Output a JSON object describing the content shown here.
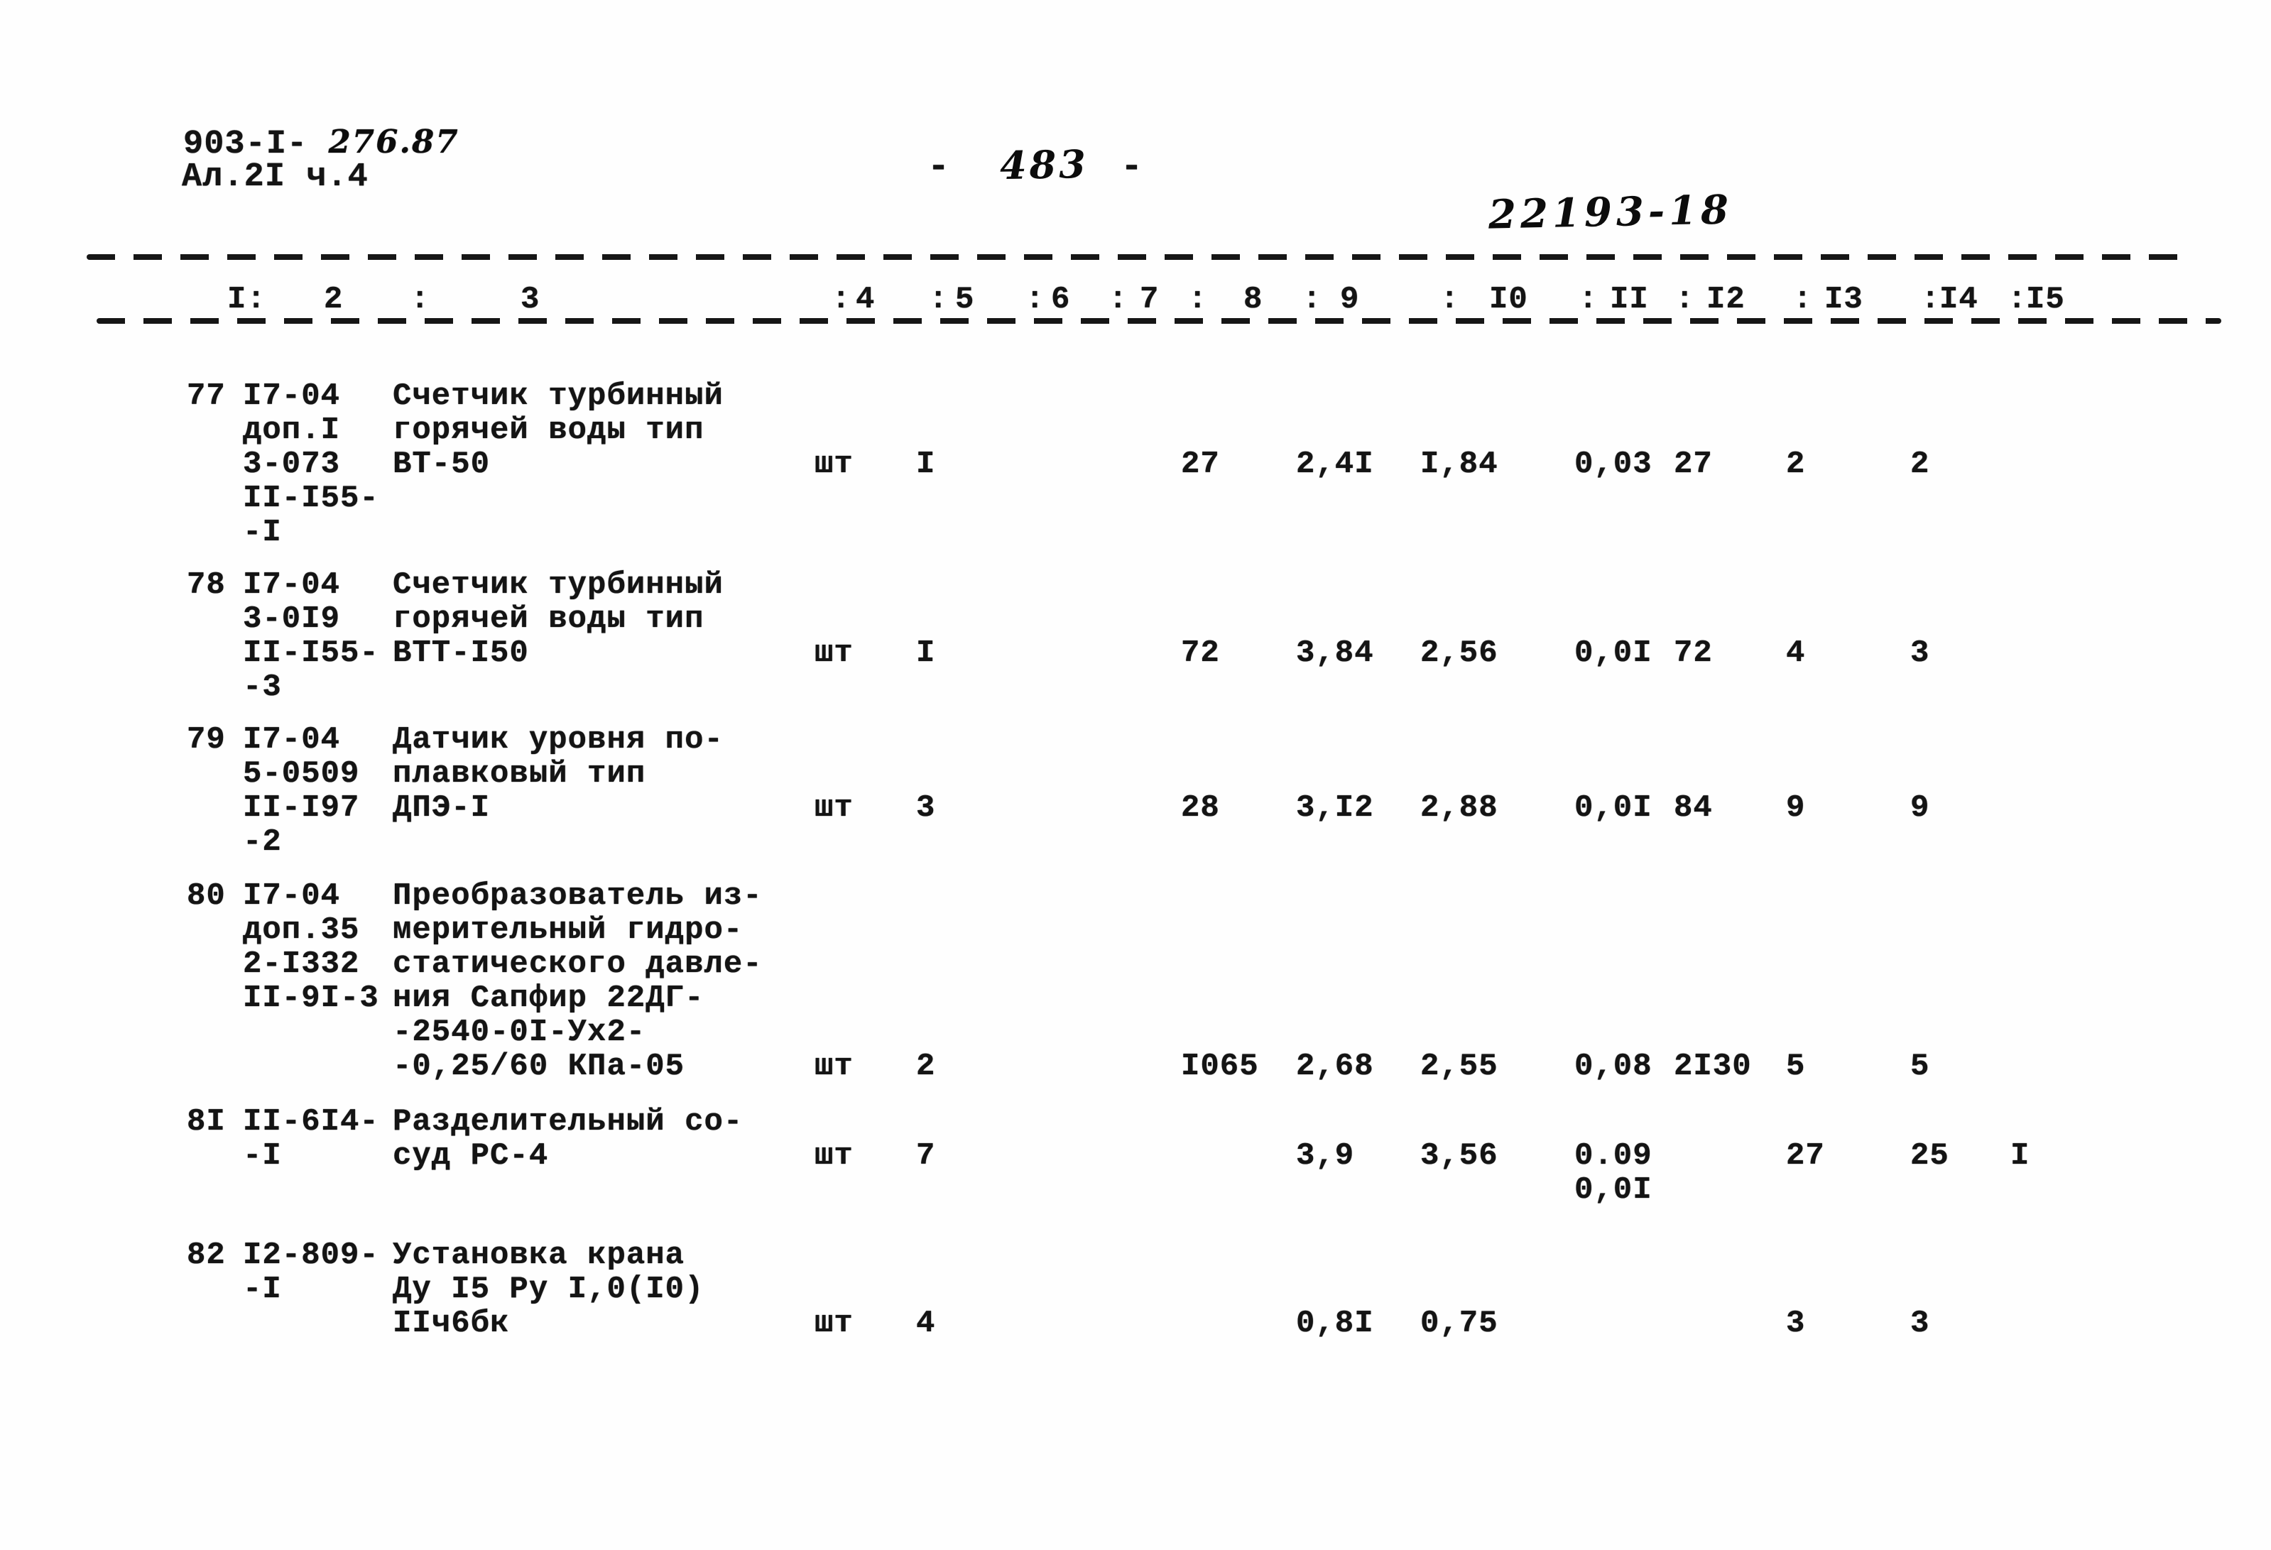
{
  "header": {
    "doc_series": "903-I-",
    "doc_series_hw": "276.87",
    "album": "Ал.2I ч.4",
    "page_dash_left": "-",
    "page_number": "483",
    "page_dash_right": "-",
    "stamp": "22193-18"
  },
  "table": {
    "header_labels": [
      "I:",
      "2",
      ":",
      "3",
      ":",
      "4",
      ":",
      "5",
      ":",
      "6",
      ":",
      "7",
      ":",
      "8",
      ":",
      "9",
      ":",
      "I0",
      ":",
      "II",
      ":",
      "I2",
      ":",
      "I3",
      ":",
      "I4",
      ":",
      "I5"
    ],
    "rows": [
      {
        "num": "77",
        "code_lines": [
          "I7-04",
          "доп.I",
          "3-073",
          "II-I55-",
          "-I"
        ],
        "name_lines": [
          "Счетчик турбинный",
          "горячей воды тип",
          "ВТ-50"
        ],
        "unit": "шт",
        "qty": "I",
        "c7": "27",
        "c8": "2,4I",
        "c9": "I,84",
        "c10": "0,03",
        "c11": "27",
        "c13": "2",
        "c14": "2",
        "c15": ""
      },
      {
        "num": "78",
        "code_lines": [
          "I7-04",
          "3-0I9",
          "II-I55-",
          "-3"
        ],
        "name_lines": [
          "Счетчик турбинный",
          "горячей воды тип",
          "ВТТ-I50"
        ],
        "unit": "шт",
        "qty": "I",
        "c7": "72",
        "c8": "3,84",
        "c9": "2,56",
        "c10": "0,0I",
        "c11": "72",
        "c13": "4",
        "c14": "3",
        "c15": ""
      },
      {
        "num": "79",
        "code_lines": [
          "I7-04",
          "5-0509",
          "II-I97",
          "-2"
        ],
        "name_lines": [
          "Датчик уровня по-",
          "плавковый тип",
          "ДПЭ-I"
        ],
        "unit": "шт",
        "qty": "3",
        "c7": "28",
        "c8": "3,I2",
        "c9": "2,88",
        "c10": "0,0I",
        "c11": "84",
        "c13": "9",
        "c14": "9",
        "c15": ""
      },
      {
        "num": "80",
        "code_lines": [
          "I7-04",
          "доп.35",
          "2-I332",
          "II-9I-3"
        ],
        "name_lines": [
          "Преобразователь из-",
          "мерительный гидро-",
          "статического давле-",
          "ния Сапфир 22ДГ-",
          "-2540-0I-Ух2-",
          "-0,25/60 КПа-05"
        ],
        "unit": "шт",
        "qty": "2",
        "c7": "I065",
        "c8": "2,68",
        "c9": "2,55",
        "c10": "0,08",
        "c11": "2I30",
        "c13": "5",
        "c14": "5",
        "c15": ""
      },
      {
        "num": "8I",
        "code_lines": [
          "II-6I4-",
          "-I"
        ],
        "name_lines": [
          "Разделительный со-",
          "суд РС-4"
        ],
        "unit": "шт",
        "qty": "7",
        "c7": "",
        "c8": "3,9",
        "c9": "3,56",
        "c10": [
          "0.09",
          "0,0I"
        ],
        "c11": "",
        "c13": "27",
        "c14": "25",
        "c15": "I"
      },
      {
        "num": "82",
        "code_lines": [
          "I2-809-",
          "-I"
        ],
        "name_lines": [
          "Установка крана",
          "Ду I5 Ру I,0(I0)",
          "IIч6бк"
        ],
        "unit": "шт",
        "qty": "4",
        "c7": "",
        "c8": "0,8I",
        "c9": "0,75",
        "c10": "",
        "c11": "",
        "c13": "3",
        "c14": "3",
        "c15": ""
      }
    ]
  }
}
